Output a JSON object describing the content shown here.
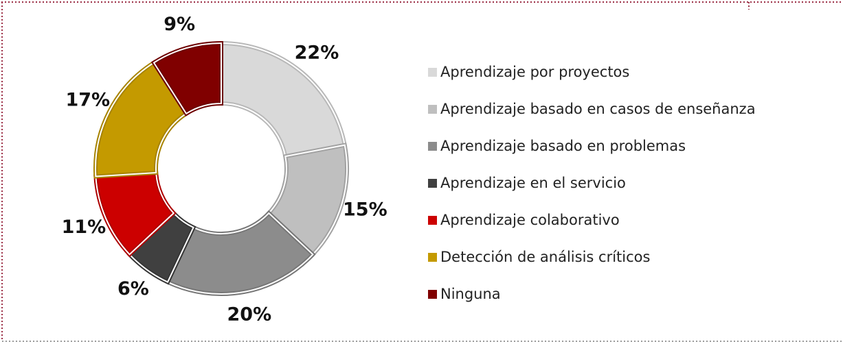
{
  "chart_data": {
    "type": "donut",
    "categories": [
      "Aprendizaje por proyectos",
      "Aprendizaje basado en casos de enseñanza",
      "Aprendizaje basado en problemas",
      "Aprendizaje en el servicio",
      "Aprendizaje colaborativo",
      "Detección de análisis críticos",
      "Ninguna"
    ],
    "values": [
      22,
      15,
      20,
      6,
      11,
      17,
      9
    ],
    "value_labels": [
      "22%",
      "15%",
      "20%",
      "6%",
      "11%",
      "17%",
      "9%"
    ],
    "colors": [
      "#d9d9d9",
      "#bfbfbf",
      "#8c8c8c",
      "#404040",
      "#cc0000",
      "#c49a00",
      "#800000"
    ],
    "legend": "right"
  }
}
